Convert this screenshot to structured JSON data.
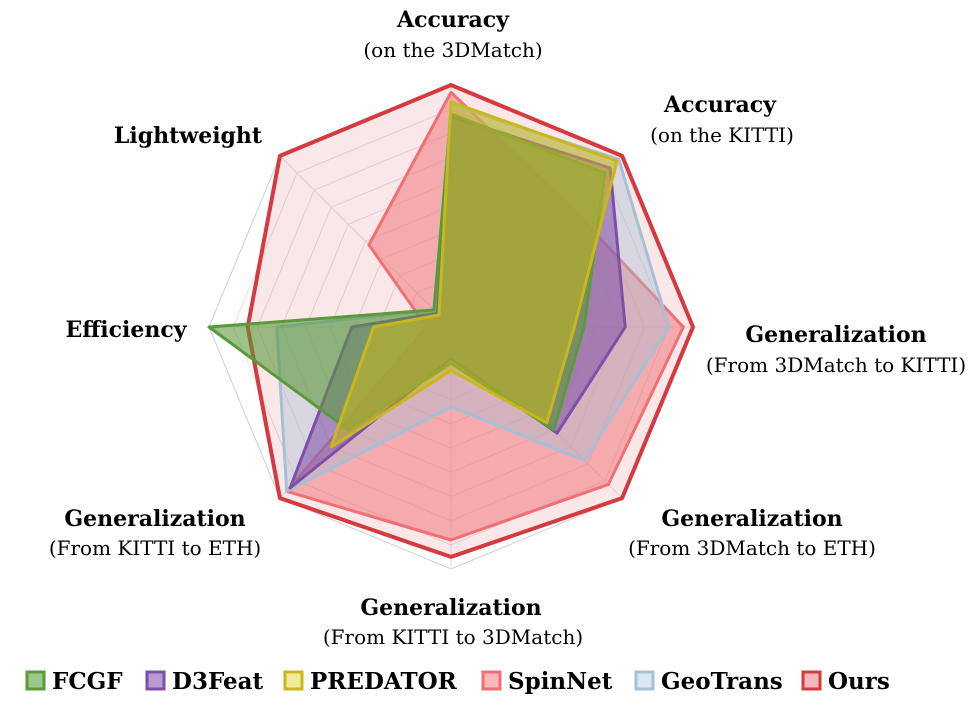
{
  "chart_data": {
    "type": "radar",
    "axes": [
      {
        "title": "Accuracy",
        "subtitle": "(on the 3DMatch)"
      },
      {
        "title": "Accuracy",
        "subtitle": "(on the KITTI)"
      },
      {
        "title": "Generalization",
        "subtitle": "(From 3DMatch to KITTI)"
      },
      {
        "title": "Generalization",
        "subtitle": "(From 3DMatch to ETH)"
      },
      {
        "title": "Generalization",
        "subtitle": "(From KITTI to 3DMatch)"
      },
      {
        "title": "Generalization",
        "subtitle": "(From KITTI to ETH)"
      },
      {
        "title": "Efficiency",
        "subtitle": ""
      },
      {
        "title": "Lightweight",
        "subtitle": ""
      }
    ],
    "range": [
      0,
      1
    ],
    "rings": 10,
    "series": [
      {
        "name": "FCGF",
        "color": "#5b9a3c",
        "values": [
          0.88,
          0.9,
          0.55,
          0.6,
          0.15,
          0.6,
          1.0,
          0.1
        ]
      },
      {
        "name": "D3Feat",
        "color": "#7e4fa6",
        "values": [
          0.87,
          0.93,
          0.72,
          0.62,
          0.13,
          0.94,
          0.41,
          0.08
        ]
      },
      {
        "name": "PREDATOR",
        "color": "#c8b81a",
        "values": [
          0.93,
          0.97,
          0.51,
          0.56,
          0.18,
          0.7,
          0.32,
          0.07
        ]
      },
      {
        "name": "SpinNet",
        "color": "#f06f74",
        "values": [
          0.97,
          0.7,
          0.96,
          0.92,
          0.88,
          0.96,
          0.1,
          0.48
        ]
      },
      {
        "name": "GeoTrans",
        "color": "#a6c1d6",
        "values": [
          0.92,
          0.98,
          0.9,
          0.78,
          0.33,
          0.96,
          0.72,
          0.1
        ]
      },
      {
        "name": "Ours",
        "color": "#d43a3f",
        "values": [
          1.0,
          1.0,
          1.0,
          1.0,
          0.95,
          1.0,
          0.84,
          1.0
        ]
      }
    ]
  }
}
